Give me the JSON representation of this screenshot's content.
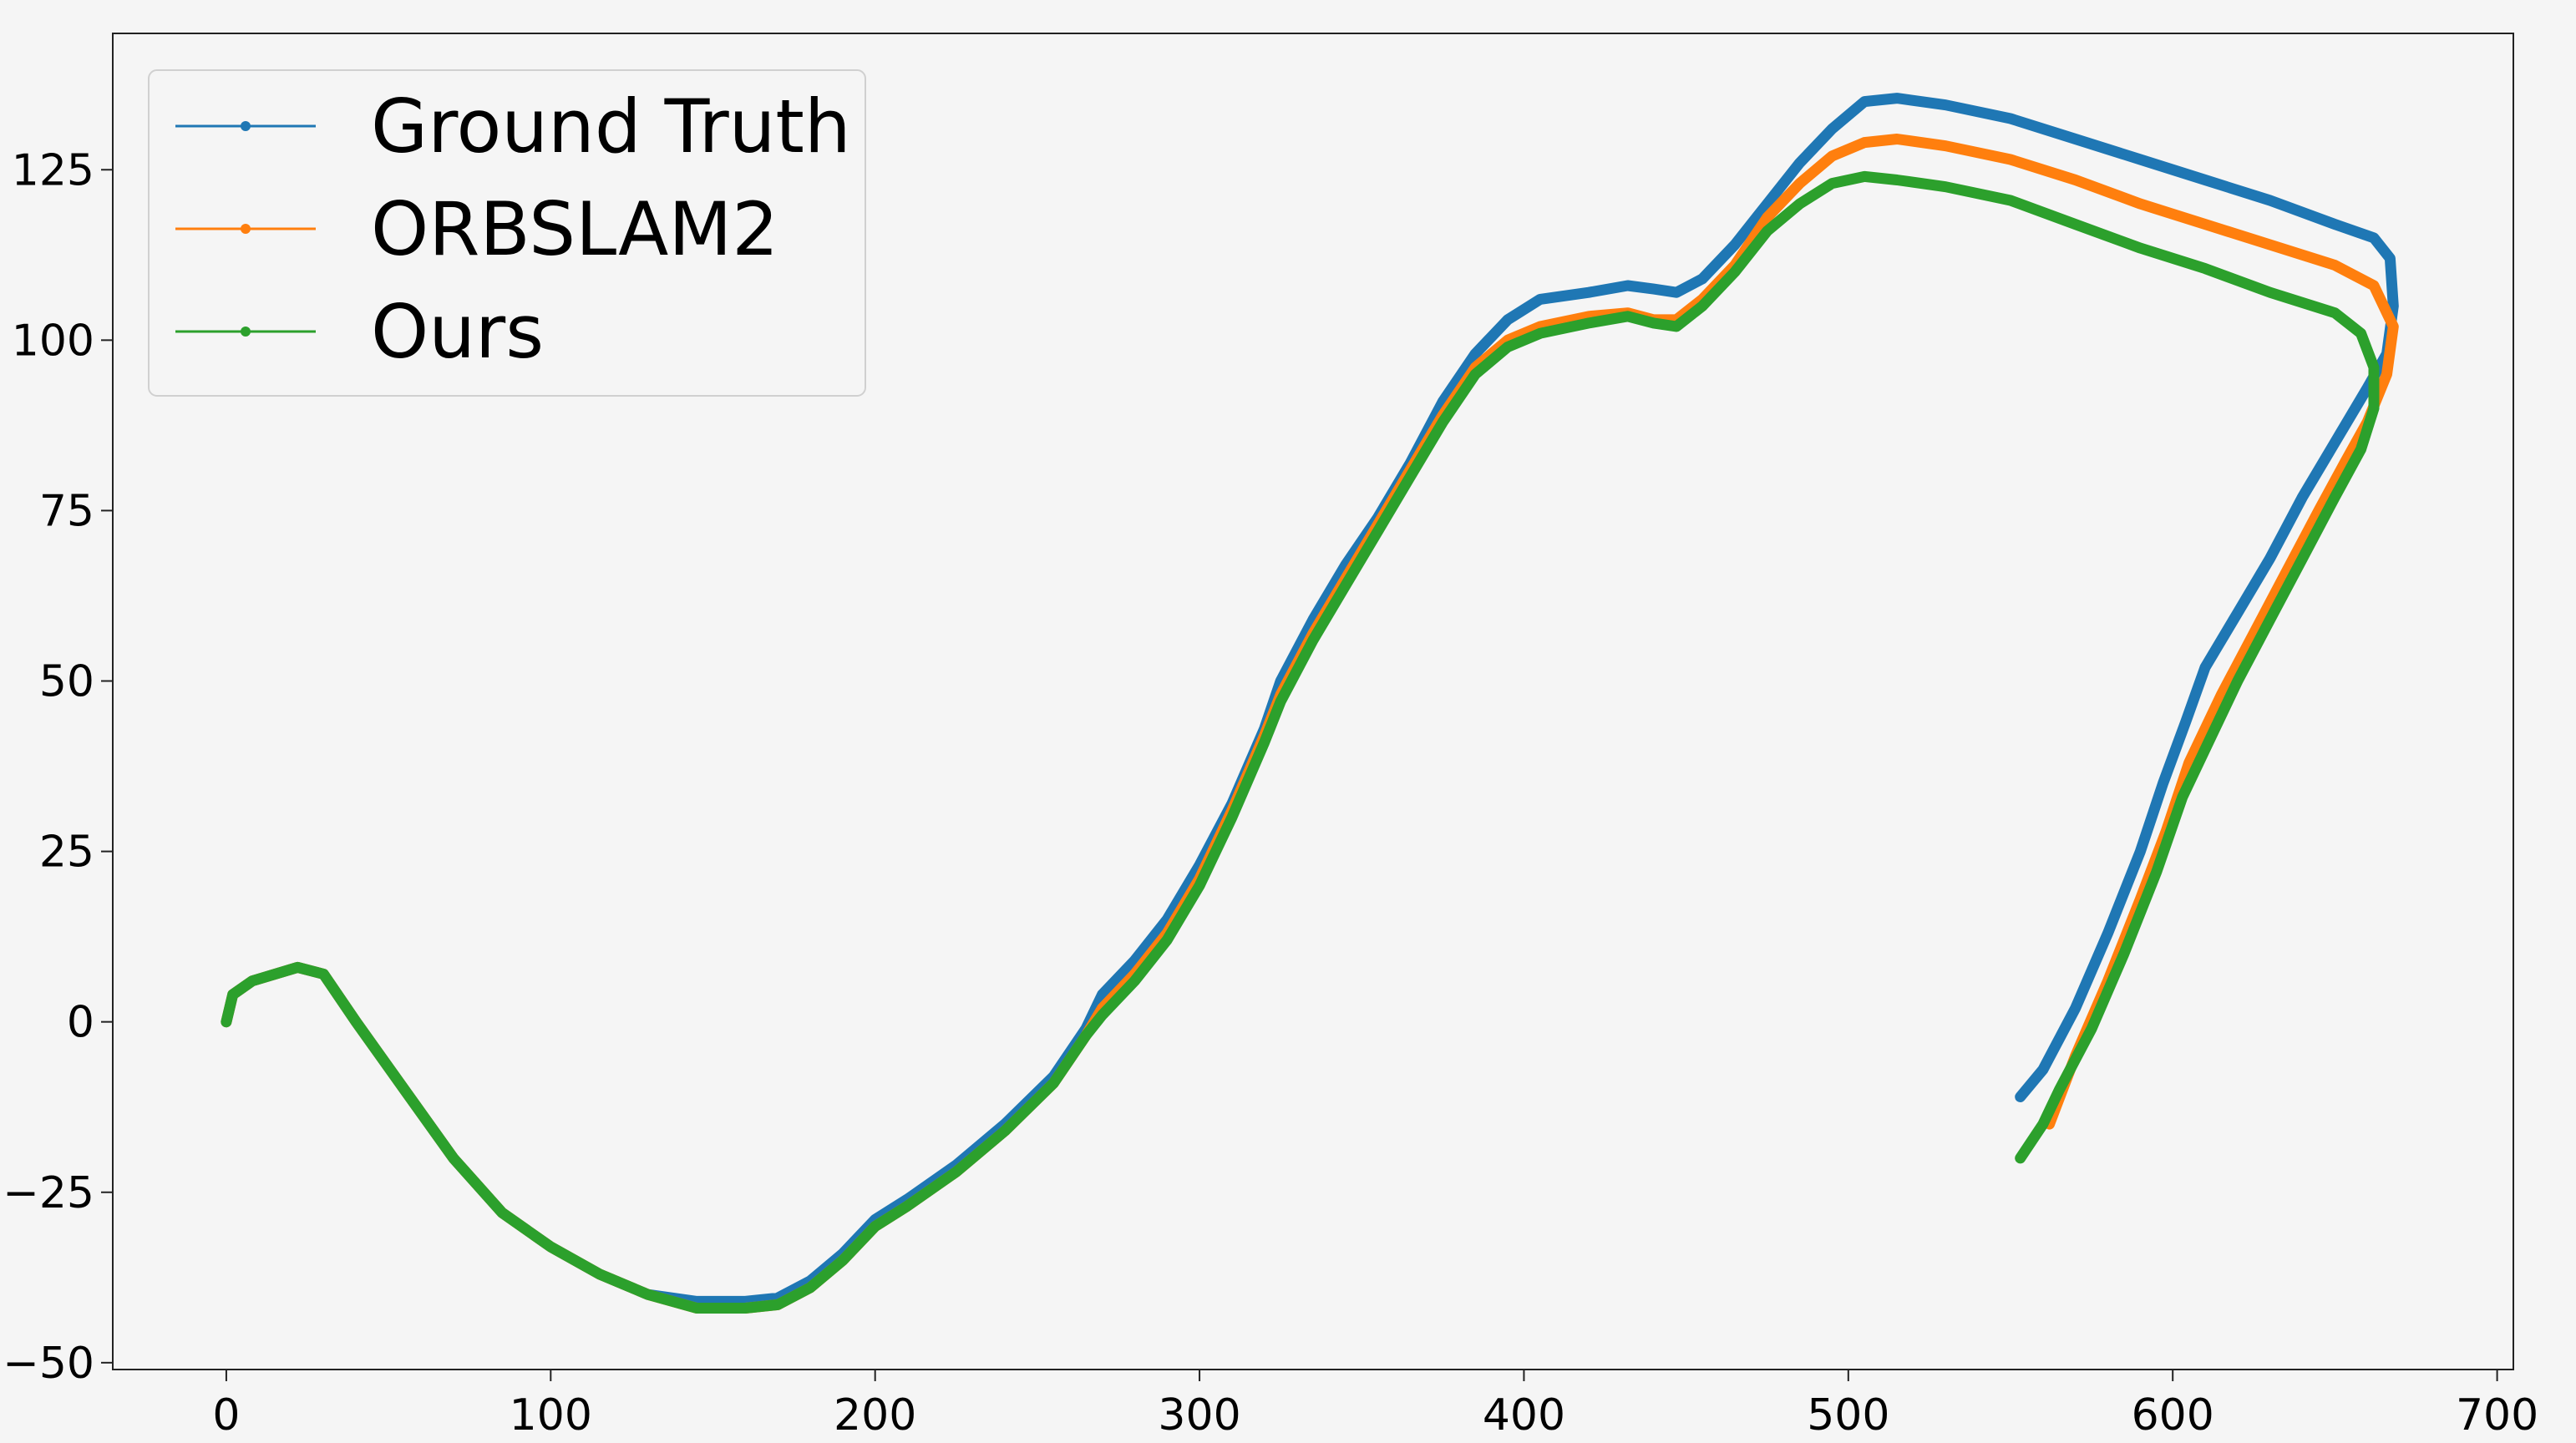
{
  "chart_data": {
    "type": "line",
    "title": "",
    "xlabel": "",
    "ylabel": "",
    "xlim": [
      -35,
      705
    ],
    "ylim": [
      -51,
      145
    ],
    "xticks": [
      0,
      100,
      200,
      300,
      400,
      500,
      600,
      700
    ],
    "yticks": [
      -50,
      -25,
      0,
      25,
      50,
      75,
      100,
      125
    ],
    "xtick_labels": [
      "0",
      "100",
      "200",
      "300",
      "400",
      "500",
      "600",
      "700"
    ],
    "ytick_labels": [
      "−50",
      "−25",
      "0",
      "25",
      "50",
      "75",
      "100",
      "125"
    ],
    "grid": false,
    "legend_position": "top-left",
    "series": [
      {
        "name": "Ground Truth",
        "color": "#1f77b4",
        "points": [
          [
            0,
            0
          ],
          [
            2,
            4
          ],
          [
            8,
            6
          ],
          [
            22,
            8
          ],
          [
            30,
            7
          ],
          [
            40,
            0
          ],
          [
            55,
            -10
          ],
          [
            70,
            -20
          ],
          [
            85,
            -28
          ],
          [
            100,
            -33
          ],
          [
            115,
            -37
          ],
          [
            130,
            -40
          ],
          [
            145,
            -41
          ],
          [
            160,
            -41
          ],
          [
            170,
            -40.5
          ],
          [
            180,
            -38
          ],
          [
            190,
            -34
          ],
          [
            200,
            -29
          ],
          [
            210,
            -26
          ],
          [
            225,
            -21
          ],
          [
            240,
            -15
          ],
          [
            255,
            -8
          ],
          [
            265,
            -1
          ],
          [
            270,
            4
          ],
          [
            280,
            9
          ],
          [
            290,
            15
          ],
          [
            300,
            23
          ],
          [
            310,
            32
          ],
          [
            320,
            43
          ],
          [
            325,
            50
          ],
          [
            335,
            59
          ],
          [
            345,
            67
          ],
          [
            355,
            74
          ],
          [
            365,
            82
          ],
          [
            375,
            91
          ],
          [
            385,
            98
          ],
          [
            395,
            103
          ],
          [
            405,
            106
          ],
          [
            420,
            107
          ],
          [
            432,
            108
          ],
          [
            440,
            107.5
          ],
          [
            447,
            107
          ],
          [
            455,
            109
          ],
          [
            465,
            114
          ],
          [
            475,
            120
          ],
          [
            485,
            126
          ],
          [
            495,
            131
          ],
          [
            505,
            135
          ],
          [
            515,
            135.5
          ],
          [
            530,
            134.5
          ],
          [
            550,
            132.5
          ],
          [
            570,
            129.5
          ],
          [
            590,
            126.5
          ],
          [
            610,
            123.5
          ],
          [
            630,
            120.5
          ],
          [
            650,
            117
          ],
          [
            662,
            115
          ],
          [
            667,
            112
          ],
          [
            668,
            105
          ],
          [
            666,
            98
          ],
          [
            660,
            93
          ],
          [
            650,
            85
          ],
          [
            640,
            77
          ],
          [
            630,
            68
          ],
          [
            620,
            60
          ],
          [
            610,
            52
          ],
          [
            604,
            44
          ],
          [
            597,
            35
          ],
          [
            590,
            25
          ],
          [
            580,
            13
          ],
          [
            570,
            2
          ],
          [
            560,
            -7
          ],
          [
            553,
            -11
          ]
        ]
      },
      {
        "name": "ORBSLAM2",
        "color": "#ff7f0e",
        "points": [
          [
            0,
            0
          ],
          [
            2,
            4
          ],
          [
            8,
            6
          ],
          [
            22,
            8
          ],
          [
            30,
            7
          ],
          [
            40,
            0
          ],
          [
            55,
            -10
          ],
          [
            70,
            -20
          ],
          [
            85,
            -28
          ],
          [
            100,
            -33
          ],
          [
            115,
            -37
          ],
          [
            130,
            -40
          ],
          [
            145,
            -42
          ],
          [
            160,
            -42
          ],
          [
            170,
            -41.5
          ],
          [
            180,
            -39
          ],
          [
            190,
            -35
          ],
          [
            200,
            -30
          ],
          [
            210,
            -27
          ],
          [
            225,
            -22
          ],
          [
            240,
            -16
          ],
          [
            255,
            -9
          ],
          [
            265,
            -2
          ],
          [
            270,
            2
          ],
          [
            280,
            7
          ],
          [
            290,
            13
          ],
          [
            300,
            21
          ],
          [
            310,
            31
          ],
          [
            320,
            42
          ],
          [
            325,
            48
          ],
          [
            335,
            57
          ],
          [
            345,
            65
          ],
          [
            355,
            73
          ],
          [
            365,
            81
          ],
          [
            375,
            89
          ],
          [
            385,
            96
          ],
          [
            395,
            100
          ],
          [
            405,
            102
          ],
          [
            420,
            103.5
          ],
          [
            432,
            104
          ],
          [
            440,
            103
          ],
          [
            447,
            103
          ],
          [
            455,
            106
          ],
          [
            465,
            111
          ],
          [
            475,
            118
          ],
          [
            485,
            123
          ],
          [
            495,
            127
          ],
          [
            505,
            129
          ],
          [
            515,
            129.5
          ],
          [
            530,
            128.5
          ],
          [
            550,
            126.5
          ],
          [
            570,
            123.5
          ],
          [
            590,
            120
          ],
          [
            610,
            117
          ],
          [
            630,
            114
          ],
          [
            650,
            111
          ],
          [
            662,
            108
          ],
          [
            668,
            102
          ],
          [
            666,
            95
          ],
          [
            660,
            88
          ],
          [
            653,
            82
          ],
          [
            645,
            75
          ],
          [
            635,
            66
          ],
          [
            625,
            57
          ],
          [
            615,
            48
          ],
          [
            605,
            38
          ],
          [
            598,
            28
          ],
          [
            590,
            18
          ],
          [
            580,
            6
          ],
          [
            570,
            -5
          ],
          [
            562,
            -15
          ]
        ]
      },
      {
        "name": "Ours",
        "color": "#2ca02c",
        "points": [
          [
            0,
            0
          ],
          [
            2,
            4
          ],
          [
            8,
            6
          ],
          [
            22,
            8
          ],
          [
            30,
            7
          ],
          [
            40,
            0
          ],
          [
            55,
            -10
          ],
          [
            70,
            -20
          ],
          [
            85,
            -28
          ],
          [
            100,
            -33
          ],
          [
            115,
            -37
          ],
          [
            130,
            -40
          ],
          [
            145,
            -42
          ],
          [
            160,
            -42
          ],
          [
            170,
            -41.5
          ],
          [
            180,
            -39
          ],
          [
            190,
            -35
          ],
          [
            200,
            -30
          ],
          [
            210,
            -27
          ],
          [
            225,
            -22
          ],
          [
            240,
            -16
          ],
          [
            255,
            -9
          ],
          [
            265,
            -2
          ],
          [
            270,
            1
          ],
          [
            280,
            6
          ],
          [
            290,
            12
          ],
          [
            300,
            20
          ],
          [
            310,
            30
          ],
          [
            320,
            41
          ],
          [
            325,
            47
          ],
          [
            335,
            56
          ],
          [
            345,
            64
          ],
          [
            355,
            72
          ],
          [
            365,
            80
          ],
          [
            375,
            88
          ],
          [
            385,
            95
          ],
          [
            395,
            99
          ],
          [
            405,
            101
          ],
          [
            420,
            102.5
          ],
          [
            432,
            103.5
          ],
          [
            440,
            102.5
          ],
          [
            447,
            102
          ],
          [
            455,
            105
          ],
          [
            465,
            110
          ],
          [
            475,
            116
          ],
          [
            485,
            120
          ],
          [
            495,
            123
          ],
          [
            505,
            124
          ],
          [
            515,
            123.5
          ],
          [
            530,
            122.5
          ],
          [
            550,
            120.5
          ],
          [
            570,
            117
          ],
          [
            590,
            113.5
          ],
          [
            610,
            110.5
          ],
          [
            630,
            107
          ],
          [
            650,
            104
          ],
          [
            658,
            101
          ],
          [
            662,
            96
          ],
          [
            662,
            90
          ],
          [
            658,
            84
          ],
          [
            650,
            77
          ],
          [
            640,
            68
          ],
          [
            630,
            59
          ],
          [
            620,
            50
          ],
          [
            612,
            42
          ],
          [
            603,
            33
          ],
          [
            595,
            22
          ],
          [
            585,
            10
          ],
          [
            575,
            -1
          ],
          [
            565,
            -10
          ],
          [
            560,
            -15
          ],
          [
            553,
            -20
          ]
        ]
      }
    ]
  }
}
